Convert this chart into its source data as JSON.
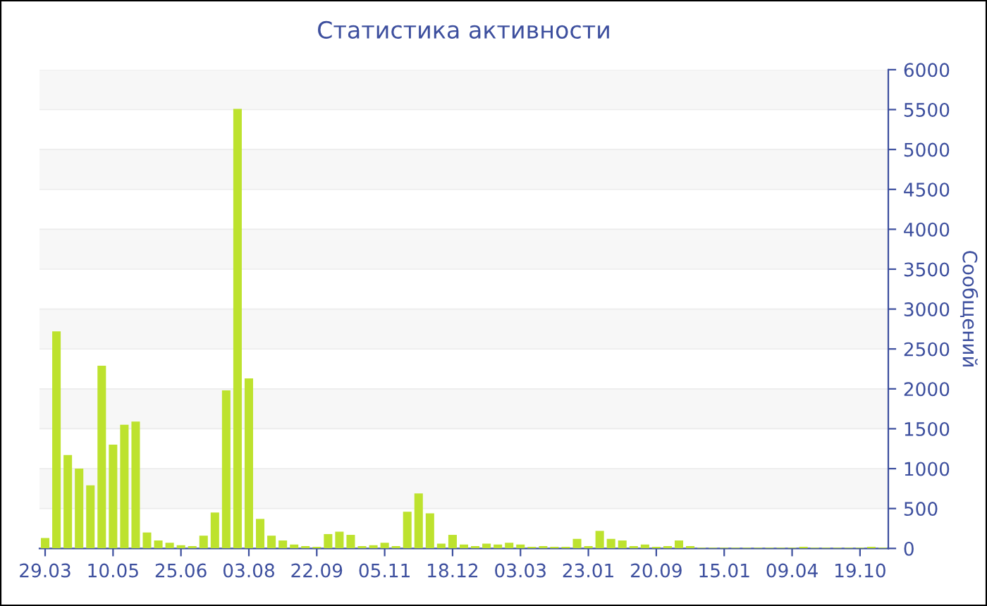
{
  "chart_data": {
    "type": "bar",
    "title": "Статистика активности",
    "ylabel": "Сообщений",
    "categories": [
      "29.03",
      null,
      null,
      null,
      null,
      null,
      "10.05",
      null,
      null,
      null,
      null,
      null,
      "25.06",
      null,
      null,
      null,
      null,
      null,
      "03.08",
      null,
      null,
      null,
      null,
      null,
      "22.09",
      null,
      null,
      null,
      null,
      null,
      "05.11",
      null,
      null,
      null,
      null,
      null,
      "18.12",
      null,
      null,
      null,
      null,
      null,
      "03.03",
      null,
      null,
      null,
      null,
      null,
      "23.01",
      null,
      null,
      null,
      null,
      null,
      "20.09",
      null,
      null,
      null,
      null,
      null,
      "15.01",
      null,
      null,
      null,
      null,
      null,
      "09.04",
      null,
      null,
      null,
      null,
      null,
      "19.10",
      null,
      null
    ],
    "values": [
      130,
      2720,
      1170,
      1000,
      790,
      2290,
      1300,
      1550,
      1590,
      200,
      100,
      70,
      40,
      30,
      160,
      450,
      1980,
      5510,
      2130,
      370,
      160,
      100,
      50,
      30,
      20,
      180,
      210,
      170,
      30,
      40,
      70,
      30,
      460,
      690,
      440,
      60,
      170,
      50,
      30,
      60,
      50,
      70,
      50,
      20,
      30,
      20,
      20,
      120,
      30,
      220,
      120,
      100,
      30,
      50,
      20,
      30,
      100,
      30,
      10,
      10,
      10,
      10,
      10,
      10,
      10,
      10,
      10,
      20,
      10,
      10,
      10,
      10,
      10,
      20,
      10
    ],
    "color": "#bde22e",
    "ylim": [
      0,
      6000
    ],
    "yticks": [
      0,
      500,
      1000,
      1500,
      2000,
      2500,
      3000,
      3500,
      4000,
      4500,
      5000,
      5500,
      6000
    ],
    "grid": "y"
  }
}
